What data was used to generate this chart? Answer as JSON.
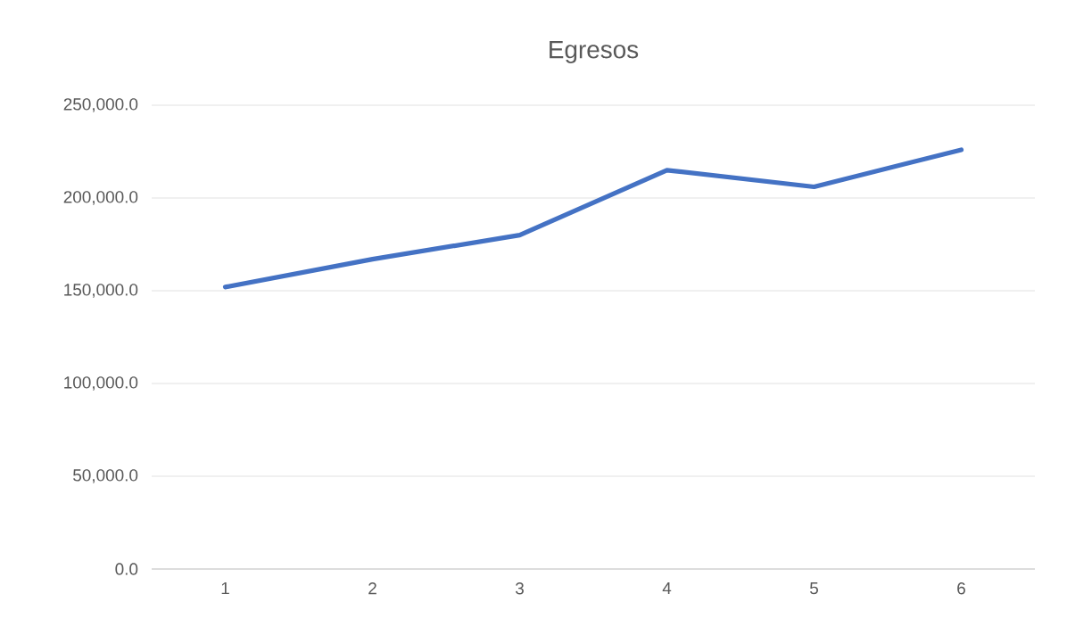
{
  "chart_data": {
    "type": "line",
    "title": "Egresos",
    "categories": [
      "1",
      "2",
      "3",
      "4",
      "5",
      "6"
    ],
    "series": [
      {
        "color": "#4472c4",
        "values": [
          152000,
          167000,
          180000,
          215000,
          206000,
          226000
        ]
      }
    ],
    "ylim": [
      0,
      250000
    ],
    "yticks": [
      {
        "value": 0,
        "label": "0.0"
      },
      {
        "value": 50000,
        "label": "50,000.0"
      },
      {
        "value": 100000,
        "label": "100,000.0"
      },
      {
        "value": 150000,
        "label": "150,000.0"
      },
      {
        "value": 200000,
        "label": "200,000.0"
      },
      {
        "value": 250000,
        "label": "250,000.0"
      }
    ],
    "grid": "y",
    "legend": false,
    "marker": "none",
    "line_style": "solid"
  }
}
